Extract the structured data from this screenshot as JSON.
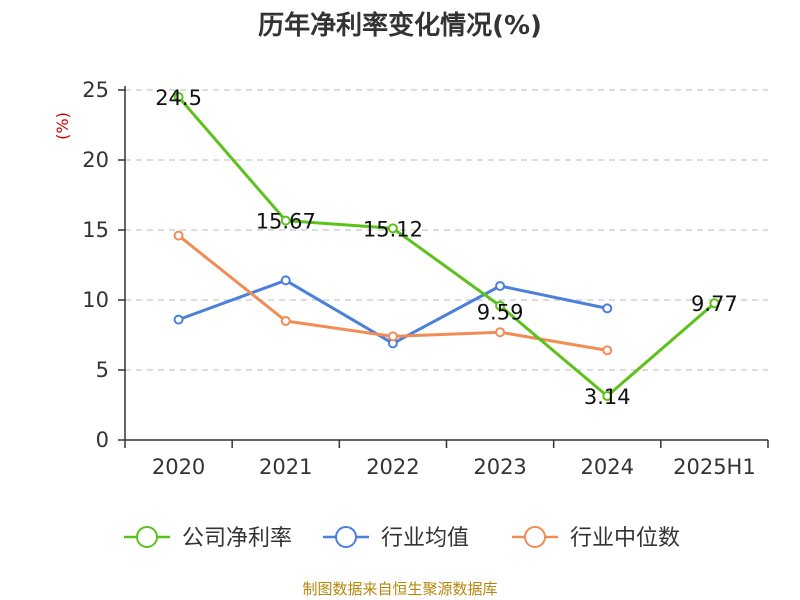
{
  "chart_data": {
    "type": "line",
    "title": "历年净利率变化情况(%)",
    "ylabel": "(%)",
    "xlabel": "",
    "categories": [
      "2020",
      "2021",
      "2022",
      "2023",
      "2024",
      "2025H1"
    ],
    "ylim": [
      0,
      25
    ],
    "yticks": [
      "0",
      "5",
      "10",
      "15",
      "20",
      "25"
    ],
    "grid": true,
    "legend_position": "bottom",
    "series": [
      {
        "name": "公司净利率",
        "color": "#5cc21b",
        "values": [
          24.5,
          15.67,
          15.12,
          9.59,
          3.14,
          9.77
        ],
        "labels": [
          "24.5",
          "15.67",
          "15.12",
          "9.59",
          "3.14",
          "9.77"
        ]
      },
      {
        "name": "行业均值",
        "color": "#4a7fdc",
        "values": [
          8.6,
          11.4,
          6.9,
          11.0,
          9.4,
          null
        ]
      },
      {
        "name": "行业中位数",
        "color": "#f28c55",
        "values": [
          14.6,
          8.5,
          7.4,
          7.7,
          6.4,
          null
        ]
      }
    ],
    "source": "制图数据来自恒生聚源数据库"
  }
}
